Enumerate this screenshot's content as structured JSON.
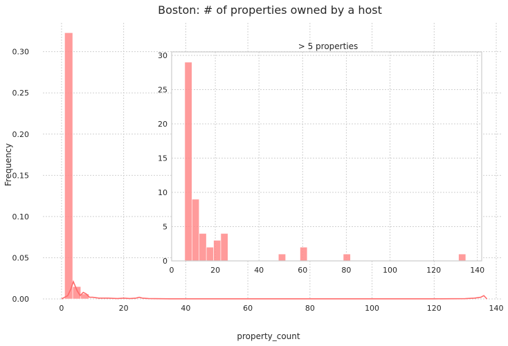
{
  "chart_data": [
    {
      "type": "bar",
      "title": "Boston: # of properties owned by a host",
      "xlabel": "property_count",
      "ylabel": "Frequency",
      "xlim": [
        -6,
        142
      ],
      "ylim": [
        0,
        0.335
      ],
      "x_ticks": [
        0,
        20,
        40,
        60,
        80,
        100,
        120,
        140
      ],
      "y_ticks": [
        0.0,
        0.05,
        0.1,
        0.15,
        0.2,
        0.25,
        0.3
      ],
      "y_tick_labels": [
        "0.00",
        "0.05",
        "0.10",
        "0.15",
        "0.20",
        "0.25",
        "0.30"
      ],
      "grid": true,
      "bins": [
        {
          "x0": 1,
          "x1": 3.6,
          "value": 0.323
        },
        {
          "x0": 3.6,
          "x1": 6.2,
          "value": 0.015
        },
        {
          "x0": 6.2,
          "x1": 8.8,
          "value": 0.006
        }
      ],
      "kde": {
        "x": [
          0,
          1,
          2,
          3,
          3.8,
          5,
          6,
          7,
          8,
          9,
          10,
          12,
          15,
          18,
          20,
          22,
          24,
          25,
          26,
          28,
          30,
          35,
          40,
          50,
          60,
          80,
          100,
          120,
          130,
          133,
          135,
          136,
          137
        ],
        "y": [
          0,
          0.002,
          0.004,
          0.012,
          0.021,
          0.01,
          0.004,
          0.008,
          0.006,
          0.002,
          0.002,
          0.001,
          0.001,
          0.0005,
          0.001,
          0.0005,
          0.001,
          0.002,
          0.001,
          0.0005,
          0.0003,
          0.0002,
          0.0002,
          0.0002,
          0.0002,
          0.0002,
          0.0002,
          0.0002,
          0.0003,
          0.001,
          0.002,
          0.004,
          0
        ]
      }
    },
    {
      "type": "bar",
      "title": "> 5 properties",
      "xlim": [
        0,
        142
      ],
      "ylim": [
        0,
        30.5
      ],
      "x_ticks": [
        0,
        20,
        40,
        60,
        80,
        100,
        120,
        140
      ],
      "y_ticks": [
        0,
        5,
        10,
        15,
        20,
        25,
        30
      ],
      "bins": [
        {
          "x0": 6.0,
          "x1": 9.3,
          "value": 29
        },
        {
          "x0": 9.3,
          "x1": 12.6,
          "value": 9
        },
        {
          "x0": 12.6,
          "x1": 15.9,
          "value": 4
        },
        {
          "x0": 15.9,
          "x1": 19.2,
          "value": 2
        },
        {
          "x0": 19.2,
          "x1": 22.5,
          "value": 3
        },
        {
          "x0": 22.5,
          "x1": 25.8,
          "value": 4
        },
        {
          "x0": 48.9,
          "x1": 52.2,
          "value": 1
        },
        {
          "x0": 58.8,
          "x1": 62.1,
          "value": 2
        },
        {
          "x0": 78.6,
          "x1": 81.9,
          "value": 1
        },
        {
          "x0": 131.4,
          "x1": 134.7,
          "value": 1
        }
      ]
    }
  ]
}
